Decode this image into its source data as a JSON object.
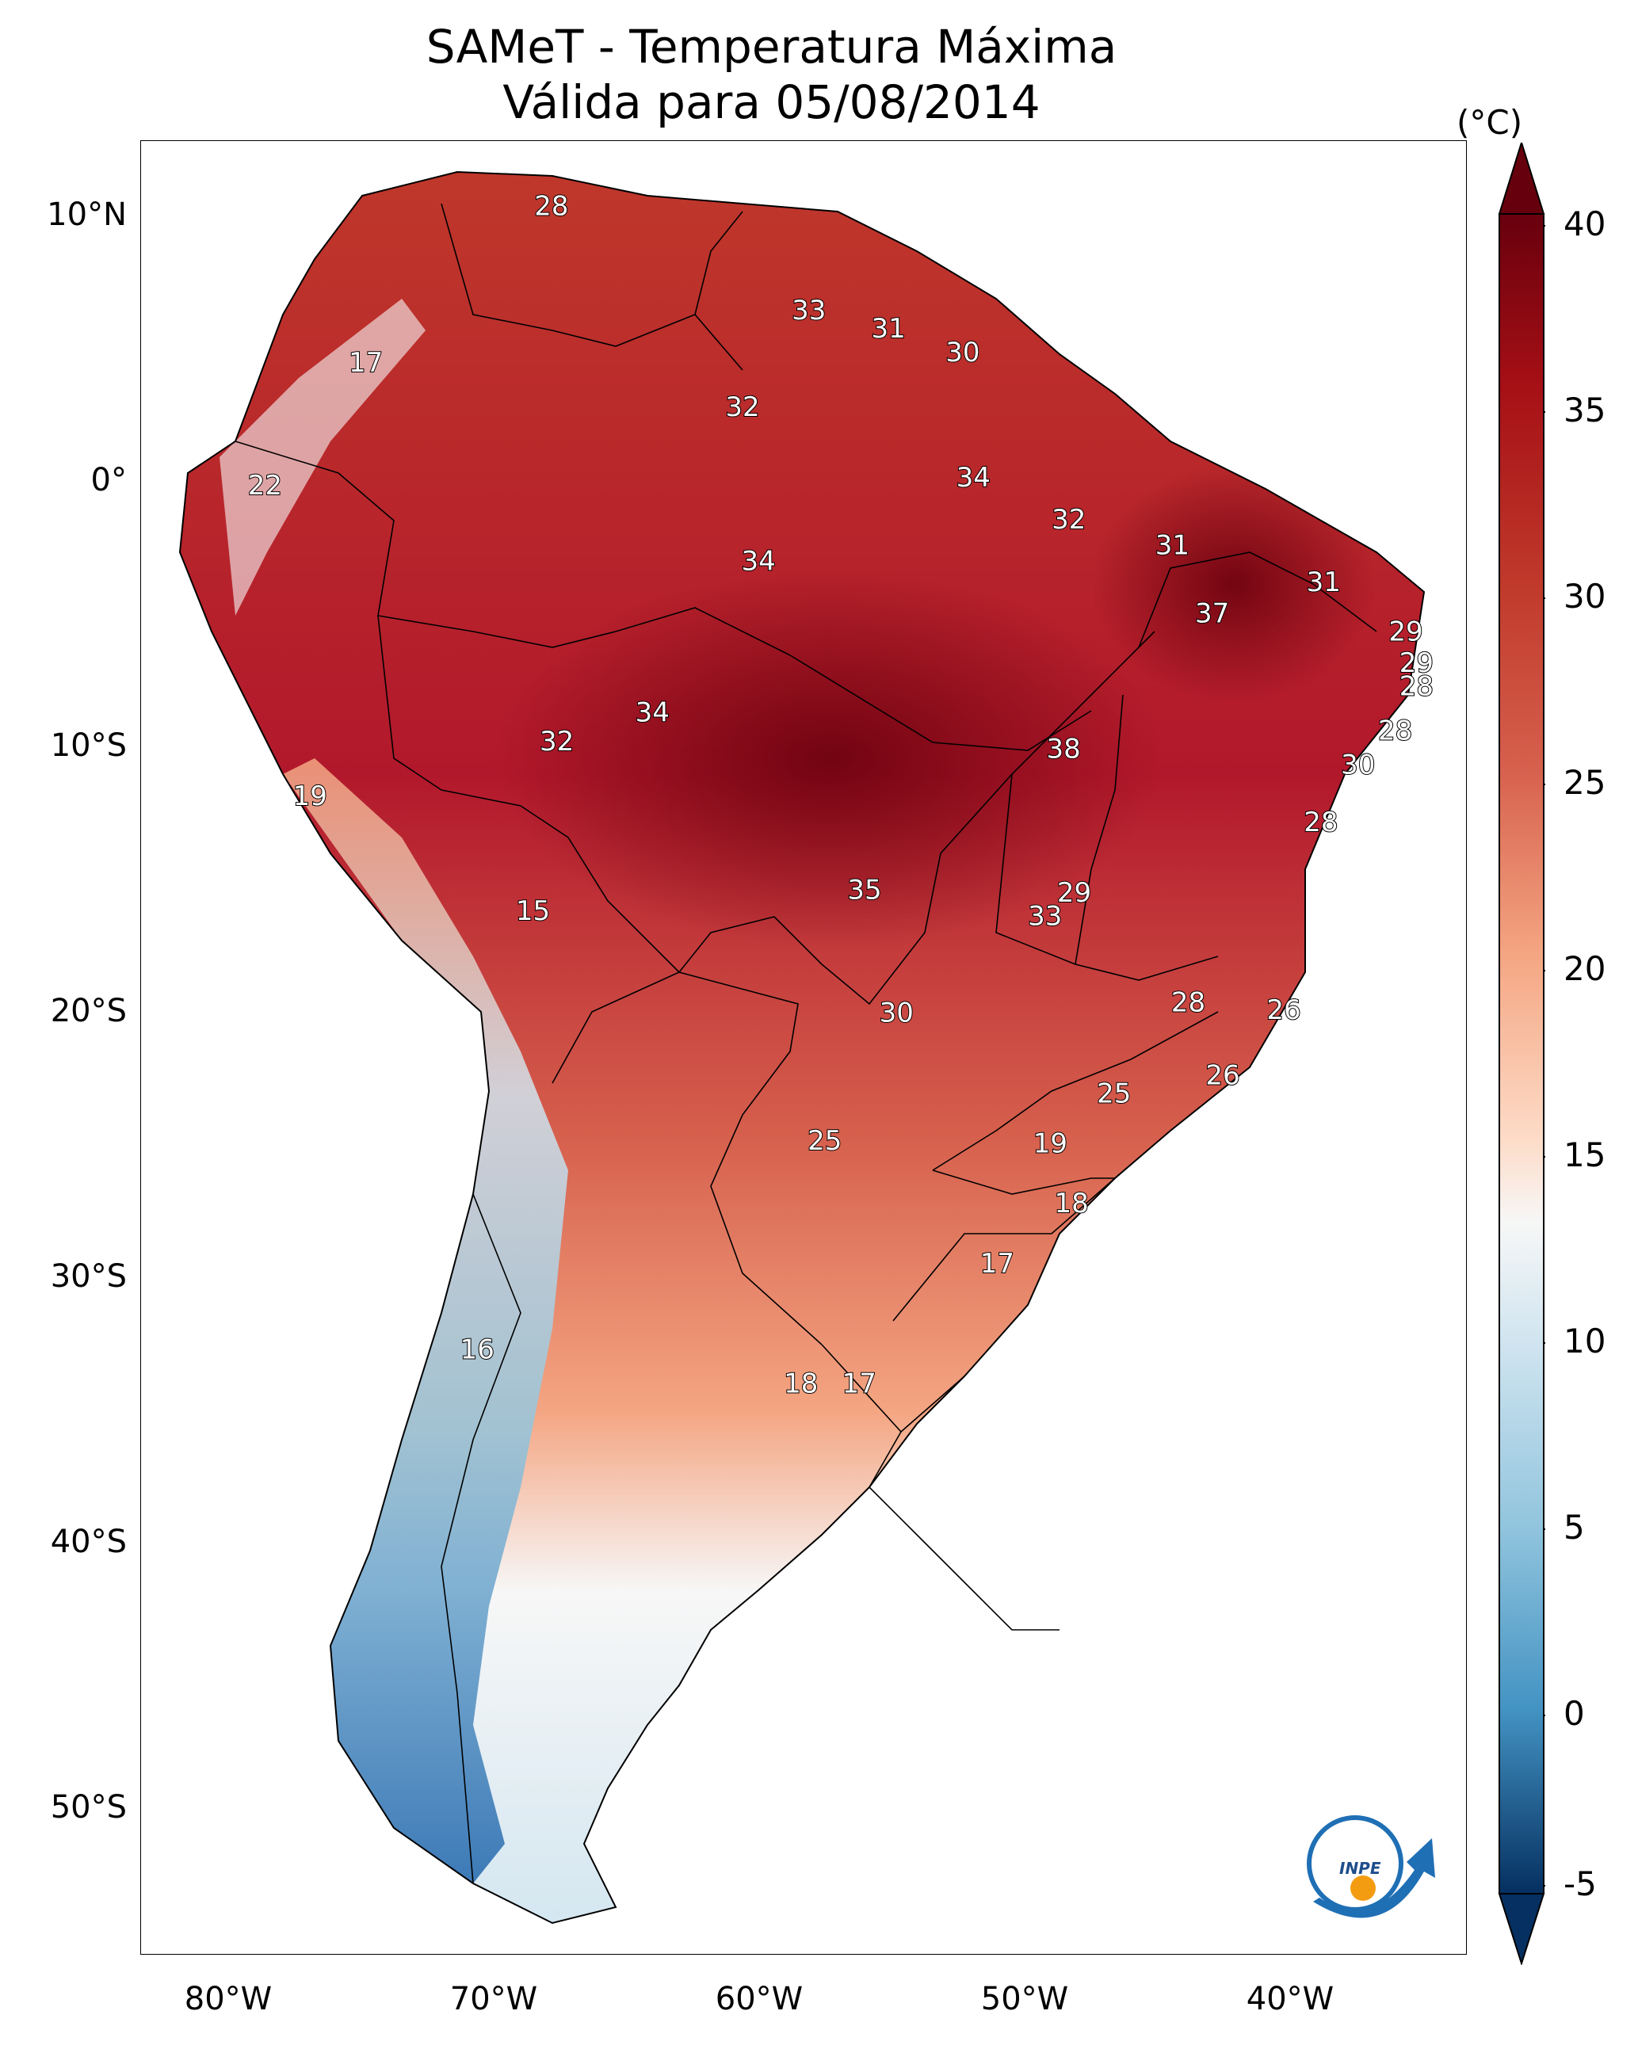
{
  "title": {
    "line1": "SAMeT - Temperatura Máxima",
    "line2": "Válida para 05/08/2014"
  },
  "colorbar": {
    "unit": "(°C)",
    "ticks": [
      "40",
      "35",
      "30",
      "25",
      "20",
      "15",
      "10",
      "5",
      "0",
      "-5"
    ],
    "range": [
      -5,
      40
    ],
    "colors": {
      "max": "#67000d",
      "warm": "#d6604d",
      "mild": "#f4a582",
      "neutral": "#f7f7f7",
      "cool": "#92c5de",
      "cold": "#2166ac",
      "min": "#053061"
    }
  },
  "axes": {
    "latitude_labels": [
      "10°N",
      "0°",
      "10°S",
      "20°S",
      "30°S",
      "40°S",
      "50°S"
    ],
    "longitude_labels": [
      "80°W",
      "70°W",
      "60°W",
      "50°W",
      "40°W"
    ]
  },
  "temperature_labels": [
    {
      "value": "28",
      "lon": -67.5,
      "lat": 10.5
    },
    {
      "value": "17",
      "lon": -74.5,
      "lat": 4.5
    },
    {
      "value": "33",
      "lon": -57.8,
      "lat": 6.5
    },
    {
      "value": "31",
      "lon": -54.8,
      "lat": 5.8
    },
    {
      "value": "30",
      "lon": -52.0,
      "lat": 4.9
    },
    {
      "value": "32",
      "lon": -60.3,
      "lat": 2.8
    },
    {
      "value": "22",
      "lon": -78.3,
      "lat": -0.2
    },
    {
      "value": "34",
      "lon": -51.6,
      "lat": 0.1
    },
    {
      "value": "32",
      "lon": -48.0,
      "lat": -1.5
    },
    {
      "value": "34",
      "lon": -59.7,
      "lat": -3.1
    },
    {
      "value": "31",
      "lon": -44.1,
      "lat": -2.5
    },
    {
      "value": "31",
      "lon": -38.4,
      "lat": -3.9
    },
    {
      "value": "37",
      "lon": -42.6,
      "lat": -5.1
    },
    {
      "value": "29",
      "lon": -35.3,
      "lat": -5.8
    },
    {
      "value": "29",
      "lon": -34.9,
      "lat": -7.0
    },
    {
      "value": "28",
      "lon": -34.9,
      "lat": -7.9
    },
    {
      "value": "34",
      "lon": -63.7,
      "lat": -8.9
    },
    {
      "value": "28",
      "lon": -35.7,
      "lat": -9.6
    },
    {
      "value": "32",
      "lon": -67.3,
      "lat": -10.0
    },
    {
      "value": "38",
      "lon": -48.2,
      "lat": -10.3
    },
    {
      "value": "30",
      "lon": -37.1,
      "lat": -10.9
    },
    {
      "value": "19",
      "lon": -76.6,
      "lat": -12.1
    },
    {
      "value": "28",
      "lon": -38.5,
      "lat": -13.1
    },
    {
      "value": "35",
      "lon": -55.7,
      "lat": -15.7
    },
    {
      "value": "29",
      "lon": -47.8,
      "lat": -15.8
    },
    {
      "value": "33",
      "lon": -48.9,
      "lat": -16.7
    },
    {
      "value": "15",
      "lon": -68.2,
      "lat": -16.5
    },
    {
      "value": "28",
      "lon": -43.5,
      "lat": -20.0
    },
    {
      "value": "26",
      "lon": -39.9,
      "lat": -20.3
    },
    {
      "value": "30",
      "lon": -54.5,
      "lat": -20.4
    },
    {
      "value": "26",
      "lon": -42.2,
      "lat": -22.8
    },
    {
      "value": "25",
      "lon": -46.3,
      "lat": -23.5
    },
    {
      "value": "25",
      "lon": -57.2,
      "lat": -25.3
    },
    {
      "value": "19",
      "lon": -48.7,
      "lat": -25.4
    },
    {
      "value": "18",
      "lon": -47.9,
      "lat": -27.7
    },
    {
      "value": "17",
      "lon": -50.7,
      "lat": -30.0
    },
    {
      "value": "16",
      "lon": -70.3,
      "lat": -33.3
    },
    {
      "value": "18",
      "lon": -58.1,
      "lat": -34.6
    },
    {
      "value": "17",
      "lon": -55.9,
      "lat": -34.6
    }
  ]
}
